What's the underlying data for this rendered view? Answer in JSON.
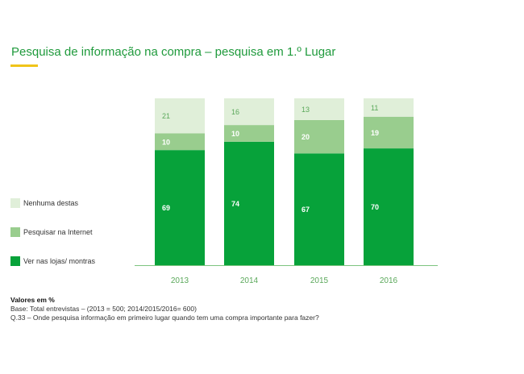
{
  "title": "Pesquisa de informação na compra – pesquisa em 1.º Lugar",
  "colors": {
    "title": "#1f9a3c",
    "underline": "#f0c419",
    "ver_nas_lojas": "#07a23a",
    "pesquisar_internet": "#99cd8e",
    "nenhuma": "#e0efd9",
    "axis": "#7cc47f",
    "tick_label": "#5aa85a"
  },
  "chart_data": {
    "type": "bar",
    "stacked": true,
    "categories": [
      "2013",
      "2014",
      "2015",
      "2016"
    ],
    "series": [
      {
        "name": "Ver nas lojas/ montras",
        "values": [
          69,
          74,
          67,
          70
        ],
        "color_key": "ver_nas_lojas"
      },
      {
        "name": "Pesquisar na Internet",
        "values": [
          10,
          10,
          20,
          19
        ],
        "color_key": "pesquisar_internet"
      },
      {
        "name": "Nenhuma destas",
        "values": [
          21,
          16,
          13,
          11
        ],
        "color_key": "nenhuma"
      }
    ],
    "ylim": [
      0,
      100
    ],
    "legend_position": "left"
  },
  "legend": [
    {
      "label": "Nenhuma destas",
      "color_key": "nenhuma"
    },
    {
      "label": "Pesquisar na Internet",
      "color_key": "pesquisar_internet"
    },
    {
      "label": "Ver nas lojas/ montras",
      "color_key": "ver_nas_lojas"
    }
  ],
  "footnotes": {
    "units": "Valores em %",
    "base": "Base: Total entrevistas –  (2013 = 500; 2014/2015/2016= 600)",
    "question": "Q.33 – Onde pesquisa informação em primeiro lugar quando tem uma compra importante para fazer?"
  }
}
